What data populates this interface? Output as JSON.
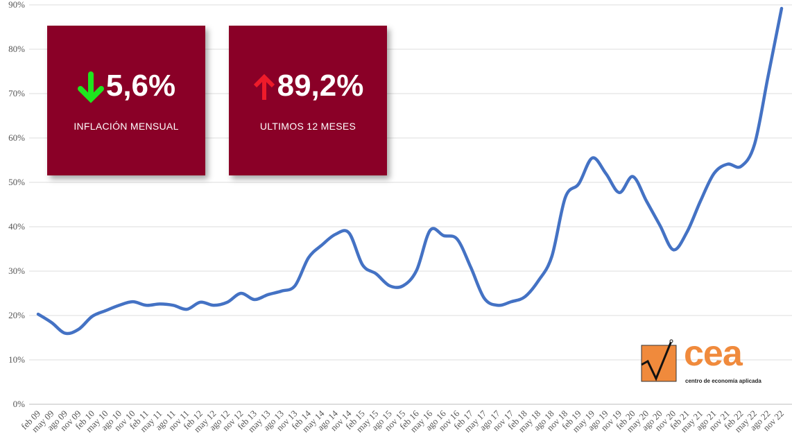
{
  "chart_data": {
    "type": "line",
    "categories": [
      "feb 09",
      "may 09",
      "ago 09",
      "nov 09",
      "feb 10",
      "may 10",
      "ago 10",
      "nov 10",
      "feb 11",
      "may 11",
      "ago 11",
      "nov 11",
      "feb 12",
      "may 12",
      "ago 12",
      "nov 12",
      "feb 13",
      "may 13",
      "ago 13",
      "nov 13",
      "feb 14",
      "may 14",
      "ago 14",
      "nov 14",
      "feb 15",
      "may 15",
      "ago 15",
      "nov 15",
      "feb 16",
      "may 16",
      "ago 16",
      "nov 16",
      "feb 17",
      "may 17",
      "ago 17",
      "nov 17",
      "feb 18",
      "may 18",
      "ago 18",
      "nov 18",
      "feb 19",
      "may 19",
      "ago 19",
      "nov 19",
      "feb 20",
      "may 20",
      "ago 20",
      "nov 20",
      "feb 21",
      "may 21",
      "ago 21",
      "nov 21",
      "feb 22",
      "may 22",
      "ago 22",
      "nov 22"
    ],
    "series": [
      {
        "color": "#4472c4",
        "values": [
          20.3,
          18.4,
          16,
          16.9,
          19.8,
          21.1,
          22.3,
          23.1,
          22.3,
          22.6,
          22.3,
          21.4,
          23,
          22.3,
          23,
          25,
          23.6,
          24.7,
          25.5,
          26.7,
          33,
          35.9,
          38.3,
          38.6,
          31.4,
          29.4,
          26.7,
          26.7,
          30.2,
          39.2,
          38,
          37.2,
          30.9,
          23.9,
          22.3,
          23.1,
          24.2,
          27.8,
          33.3,
          46.6,
          49.7,
          55.5,
          52,
          47.7,
          51.3,
          45.8,
          40.3,
          34.8,
          38.8,
          45.8,
          52,
          54.1,
          53.6,
          58.6,
          73.9,
          89.2
        ]
      }
    ],
    "ylim": [
      0,
      90
    ],
    "yticks": [
      {
        "value": 0,
        "label": "0%"
      },
      {
        "value": 10,
        "label": "10%"
      },
      {
        "value": 20,
        "label": "20%"
      },
      {
        "value": 30,
        "label": "30%"
      },
      {
        "value": 40,
        "label": "40%"
      },
      {
        "value": 50,
        "label": "50%"
      },
      {
        "value": 60,
        "label": "60%"
      },
      {
        "value": 70,
        "label": "70%"
      },
      {
        "value": 80,
        "label": "80%"
      },
      {
        "value": 90,
        "label": "90%"
      }
    ],
    "grid": true
  },
  "kpis": [
    {
      "value": "5,6%",
      "label": "INFLACIÓN MENSUAL"
    },
    {
      "value": "89,2%",
      "label": "ULTIMOS 12 MESES"
    }
  ],
  "logo": {
    "name": "cea",
    "subtitle": "centro de economía aplicada"
  }
}
